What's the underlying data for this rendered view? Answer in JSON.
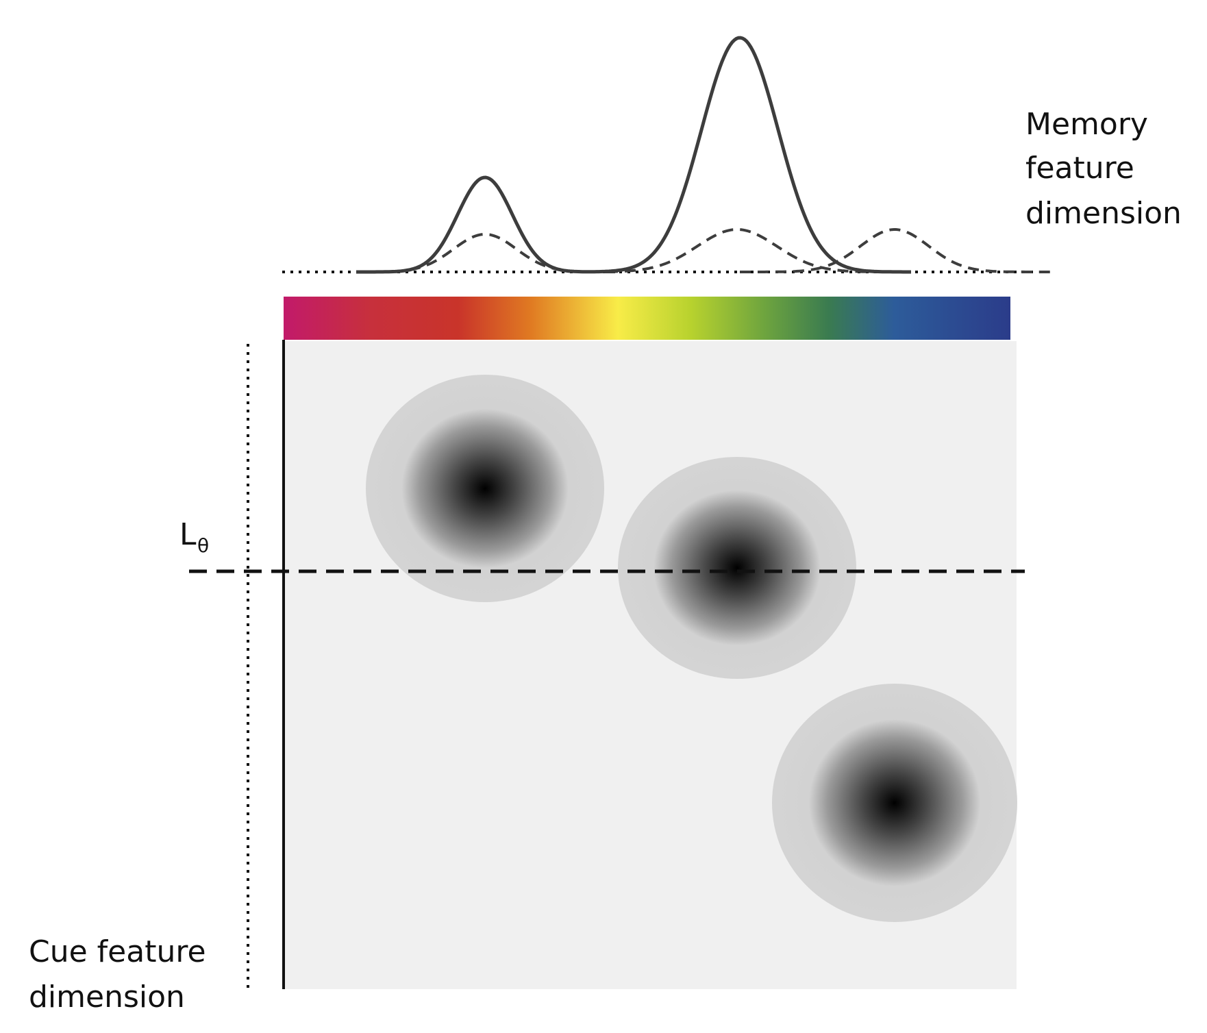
{
  "labels": {
    "memory_line1": "Memory",
    "memory_line2": "feature",
    "memory_line3": "dimension",
    "cue_line1": "Cue feature",
    "cue_line2": "dimension",
    "threshold_main": "L",
    "threshold_sub": "θ"
  },
  "colors": {
    "plane": "#f0f0f0",
    "blob_outer": "#d4d4d4",
    "blob_center": "#000000",
    "curve": "#3d3d3d",
    "spectrum": [
      "#c21a6a",
      "#c9342a",
      "#e07a22",
      "#f8ec48",
      "#b8d22e",
      "#6fa53e",
      "#3a7b50",
      "#2d5c9a",
      "#2b3c8a"
    ]
  }
}
